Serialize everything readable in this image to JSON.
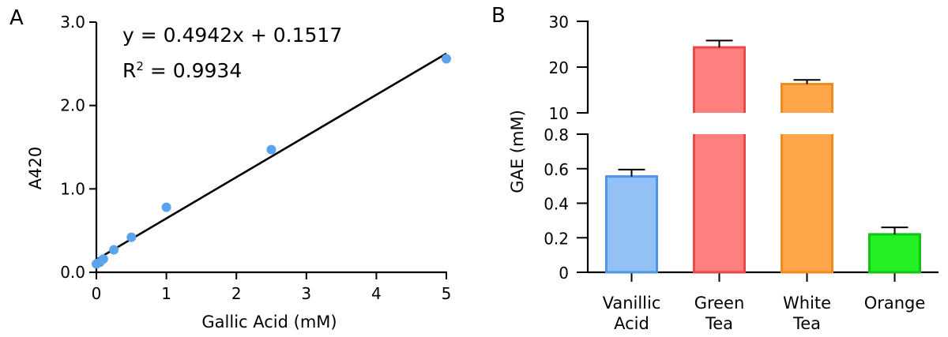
{
  "panels": {
    "a_label": "A",
    "b_label": "B"
  },
  "chart_data": [
    {
      "type": "scatter",
      "panel": "A",
      "xlabel": "Gallic Acid (mM)",
      "ylabel": "A420",
      "xlim": [
        0,
        5
      ],
      "ylim": [
        0,
        3.0
      ],
      "x_ticks": [
        "0",
        "1",
        "2",
        "3",
        "4",
        "5"
      ],
      "y_ticks": [
        "0.0",
        "1.0",
        "2.0",
        "3.0"
      ],
      "points": [
        {
          "x": 0,
          "y": 0.1
        },
        {
          "x": 0.05,
          "y": 0.12
        },
        {
          "x": 0.1,
          "y": 0.16
        },
        {
          "x": 0.25,
          "y": 0.27
        },
        {
          "x": 0.5,
          "y": 0.42
        },
        {
          "x": 1,
          "y": 0.78
        },
        {
          "x": 2.5,
          "y": 1.47
        },
        {
          "x": 5,
          "y": 2.56
        }
      ],
      "fit": {
        "slope": 0.4942,
        "intercept": 0.1517,
        "x_range": [
          0,
          5
        ]
      },
      "equation": "y = 0.4942x + 0.1517",
      "r2_prefix": "R",
      "r2_sup": "2",
      "r2_value": " = 0.9934",
      "colors": {
        "points": "#5ba3ef",
        "line": "#000000"
      }
    },
    {
      "type": "bar",
      "panel": "B",
      "ylabel": "GAE (mM)",
      "broken_axis": true,
      "lower_ylim": [
        0,
        0.8
      ],
      "upper_ylim": [
        10,
        30
      ],
      "lower_ticks": [
        "0",
        "0.2",
        "0.4",
        "0.6",
        "0.8"
      ],
      "upper_ticks": [
        "10",
        "20",
        "30"
      ],
      "categories": [
        {
          "line1": "Vanillic",
          "line2": "Acid"
        },
        {
          "line1": "Green",
          "line2": "Tea"
        },
        {
          "line1": "White",
          "line2": "Tea"
        },
        {
          "line1": "Orange",
          "line2": ""
        }
      ],
      "values": [
        0.555,
        24.3,
        16.3,
        0.22
      ],
      "errors": [
        0.04,
        1.5,
        0.9,
        0.04
      ],
      "fill_colors": [
        "#93c1f5",
        "#ff7f7f",
        "#ffa54a",
        "#22f022"
      ],
      "edge_colors": [
        "#4f95e6",
        "#e84a4a",
        "#f28a1e",
        "#13c313"
      ]
    }
  ]
}
